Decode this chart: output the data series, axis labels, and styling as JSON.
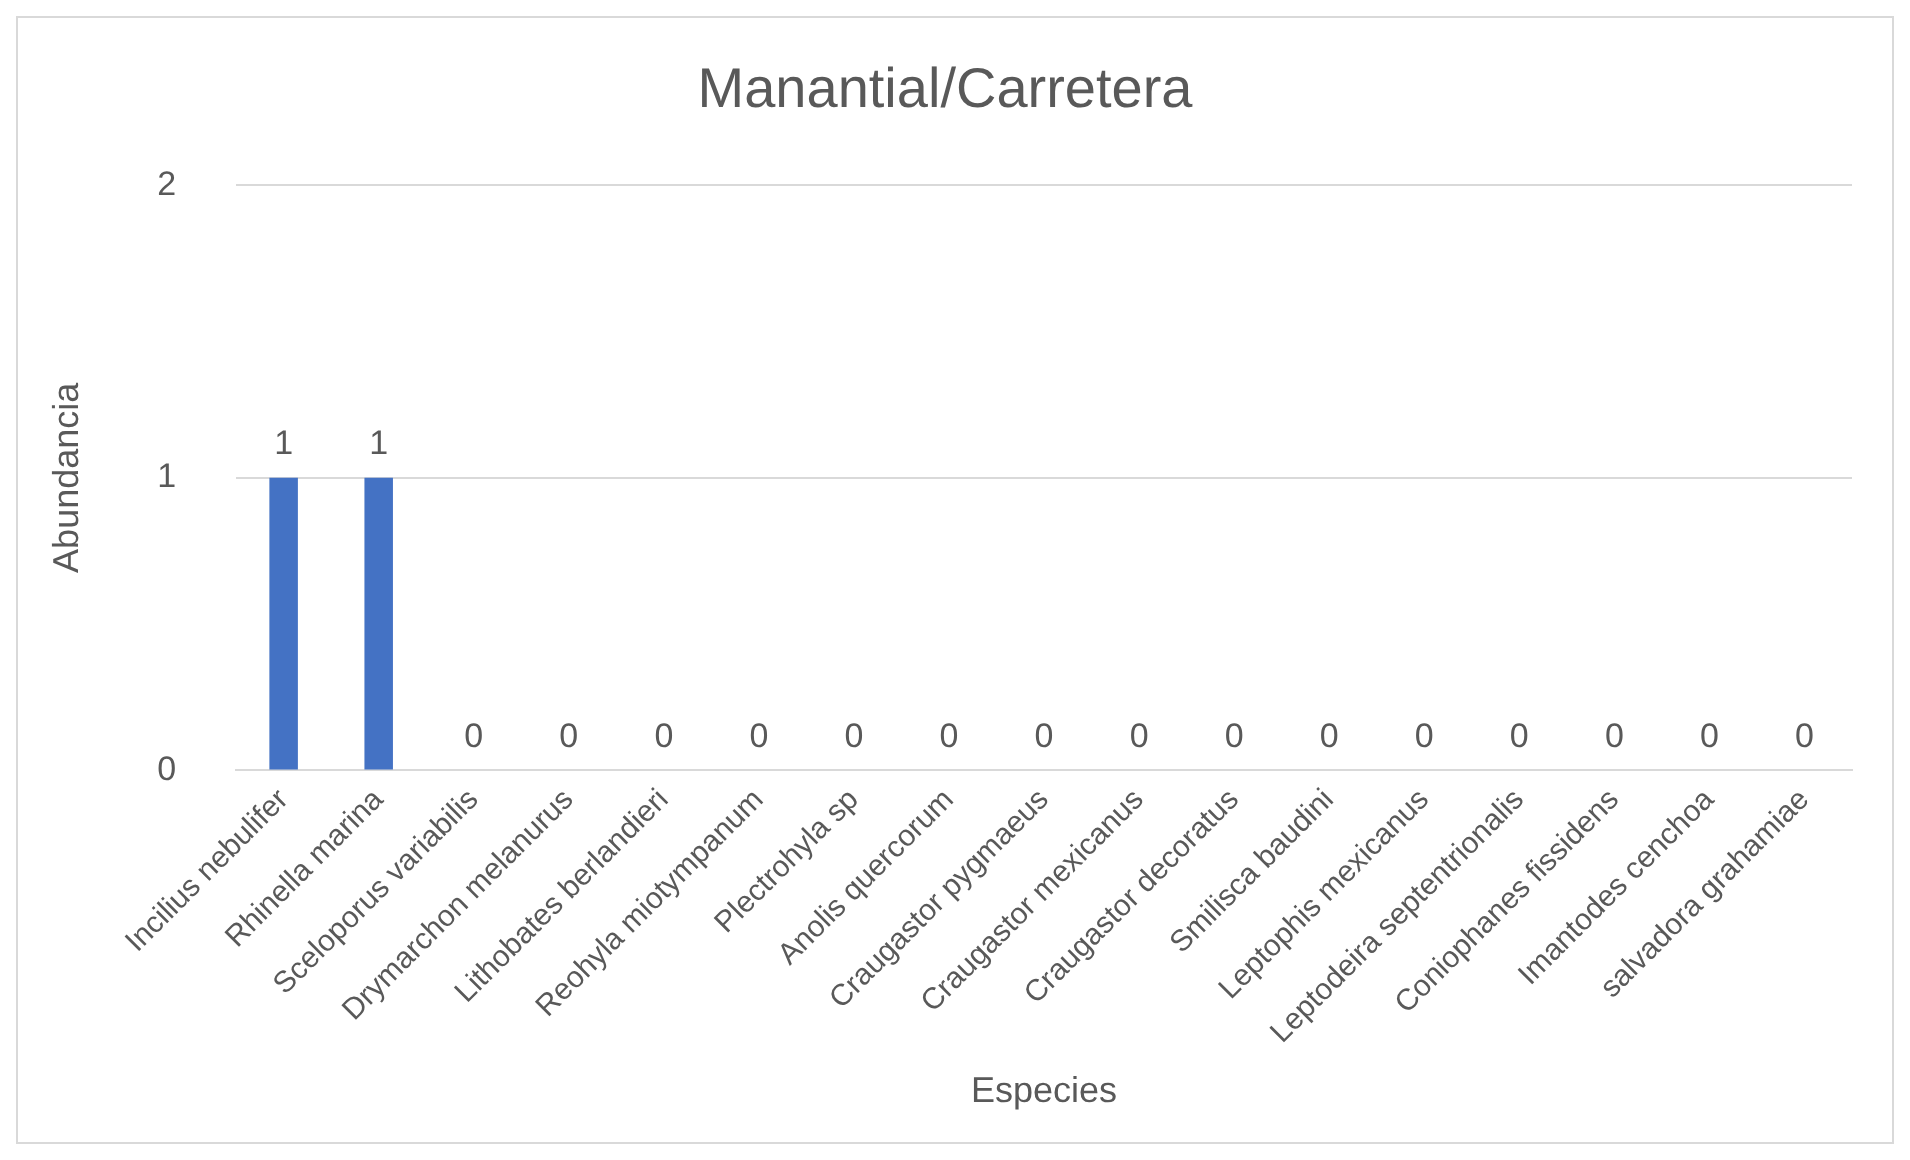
{
  "chart_data": {
    "type": "bar",
    "title": "Manantial/Carretera",
    "xlabel": "Especies",
    "ylabel": "Abundancia",
    "categories": [
      "Incilius nebulifer",
      "Rhinella marina",
      "Sceloporus variabilis",
      "Drymarchon melanurus",
      "Lithobates berlandieri",
      "Reohyla miotympanum",
      "Plectrohyla sp",
      "Anolis quercorum",
      "Craugastor pygmaeus",
      "Craugastor mexicanus",
      "Craugastor decoratus",
      "Smilisca baudini",
      "Leptophis mexicanus",
      "Leptodeira septentrionalis",
      "Coniophanes fissidens",
      "Imantodes cenchoa",
      "salvadora grahamiae"
    ],
    "values": [
      1,
      1,
      0,
      0,
      0,
      0,
      0,
      0,
      0,
      0,
      0,
      0,
      0,
      0,
      0,
      0,
      0
    ],
    "color": "#4472c4",
    "ylim": [
      0,
      2
    ],
    "yticks": [
      0,
      1,
      2
    ],
    "grid": "y",
    "data_labels": true,
    "legend": false
  }
}
